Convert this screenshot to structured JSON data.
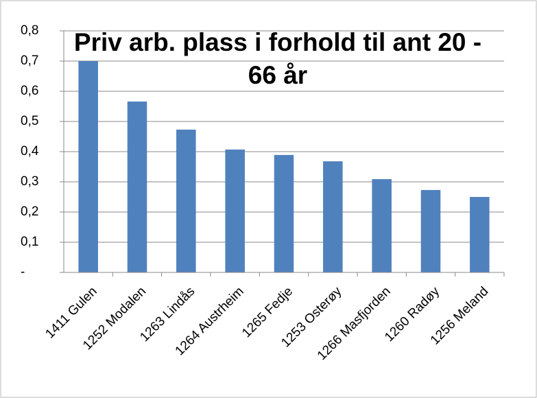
{
  "chart_data": {
    "type": "bar",
    "title": "Priv arb. plass i forhold til ant 20 - 66 år",
    "categories": [
      "1411 Gulen",
      "1252 Modalen",
      "1263 Lindås",
      "1264 Austrheim",
      "1265 Fedje",
      "1253 Osterøy",
      "1266 Masfjorden",
      "1260 Radøy",
      "1256 Meland"
    ],
    "values": [
      0.7,
      0.566,
      0.473,
      0.407,
      0.389,
      0.368,
      0.309,
      0.273,
      0.25
    ],
    "color": "#4f81bd",
    "ylim": [
      0,
      0.8
    ],
    "yticks": [
      {
        "value": 0,
        "label": "-"
      },
      {
        "value": 0.1,
        "label": "0,1"
      },
      {
        "value": 0.2,
        "label": "0,2"
      },
      {
        "value": 0.3,
        "label": "0,3"
      },
      {
        "value": 0.4,
        "label": "0,4"
      },
      {
        "value": 0.5,
        "label": "0,5"
      },
      {
        "value": 0.6,
        "label": "0,6"
      },
      {
        "value": 0.7,
        "label": "0,7"
      },
      {
        "value": 0.8,
        "label": "0,8"
      }
    ],
    "grid": true
  }
}
